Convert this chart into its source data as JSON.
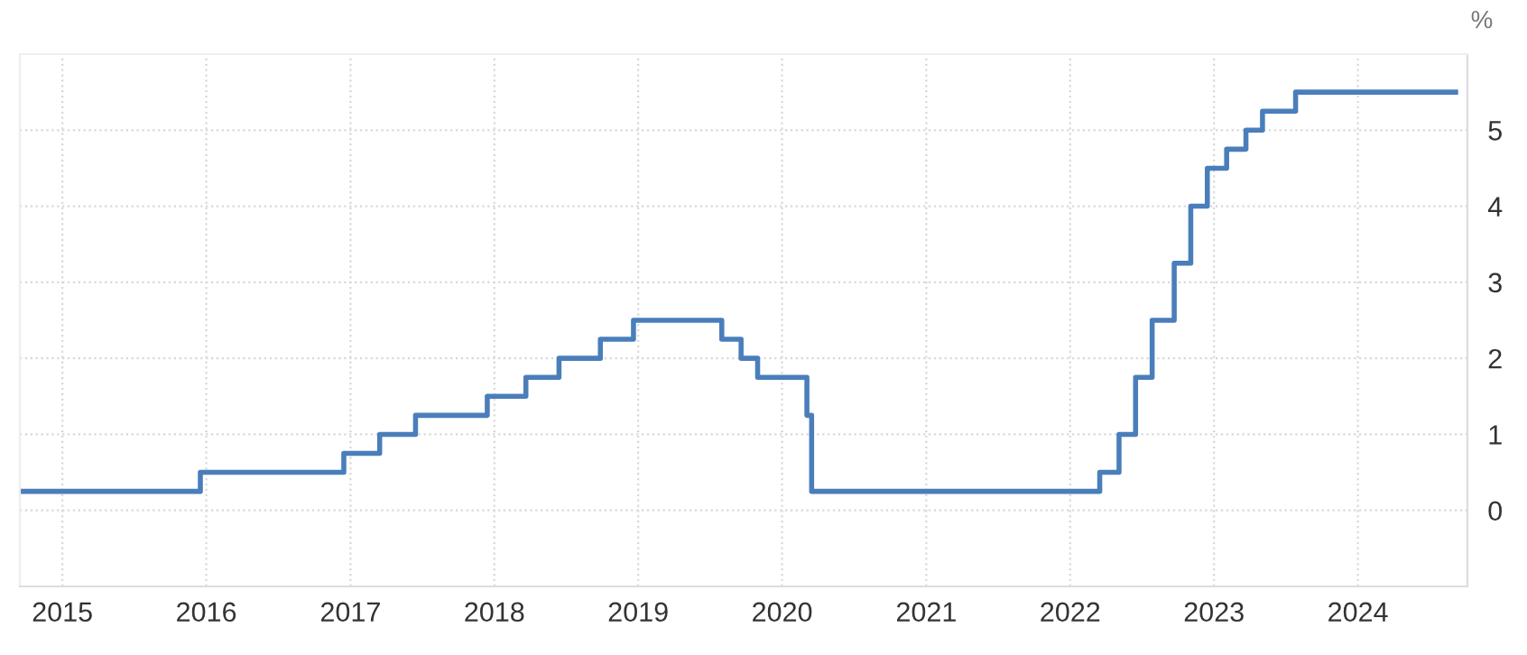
{
  "chart_data": {
    "type": "step",
    "ylabel": "%",
    "x": [
      "2014-09-15",
      "2015-12-17",
      "2016-12-15",
      "2017-03-16",
      "2017-06-15",
      "2017-12-14",
      "2018-03-22",
      "2018-06-14",
      "2018-09-27",
      "2018-12-20",
      "2019-08-01",
      "2019-09-19",
      "2019-10-31",
      "2020-03-04",
      "2020-03-16",
      "2022-03-17",
      "2022-05-05",
      "2022-06-16",
      "2022-07-28",
      "2022-09-22",
      "2022-11-03",
      "2022-12-15",
      "2023-02-02",
      "2023-03-23",
      "2023-05-04",
      "2023-07-27",
      "2024-09-05"
    ],
    "series": [
      {
        "color": "#4a7ebb",
        "values": [
          0.25,
          0.5,
          0.75,
          1.0,
          1.25,
          1.5,
          1.75,
          2.0,
          2.25,
          2.5,
          2.25,
          2.0,
          1.75,
          1.25,
          0.25,
          0.5,
          1.0,
          1.75,
          2.5,
          3.25,
          4.0,
          4.5,
          4.75,
          5.0,
          5.25,
          5.5,
          5.5
        ]
      }
    ],
    "xlim": [
      "2014-09-15",
      "2024-10-05"
    ],
    "xticks": [
      {
        "value": "2015",
        "label": "2015"
      },
      {
        "value": "2016",
        "label": "2016"
      },
      {
        "value": "2017",
        "label": "2017"
      },
      {
        "value": "2018",
        "label": "2018"
      },
      {
        "value": "2019",
        "label": "2019"
      },
      {
        "value": "2020",
        "label": "2020"
      },
      {
        "value": "2021",
        "label": "2021"
      },
      {
        "value": "2022",
        "label": "2022"
      },
      {
        "value": "2023",
        "label": "2023"
      },
      {
        "value": "2024",
        "label": "2024"
      }
    ],
    "ylim": [
      -1,
      6
    ],
    "yticks": [
      0,
      1,
      2,
      3,
      4,
      5,
      {
        "value": 6,
        "label": null
      }
    ],
    "grid": true,
    "line_style": "solid",
    "marker": "none",
    "legend": false
  }
}
